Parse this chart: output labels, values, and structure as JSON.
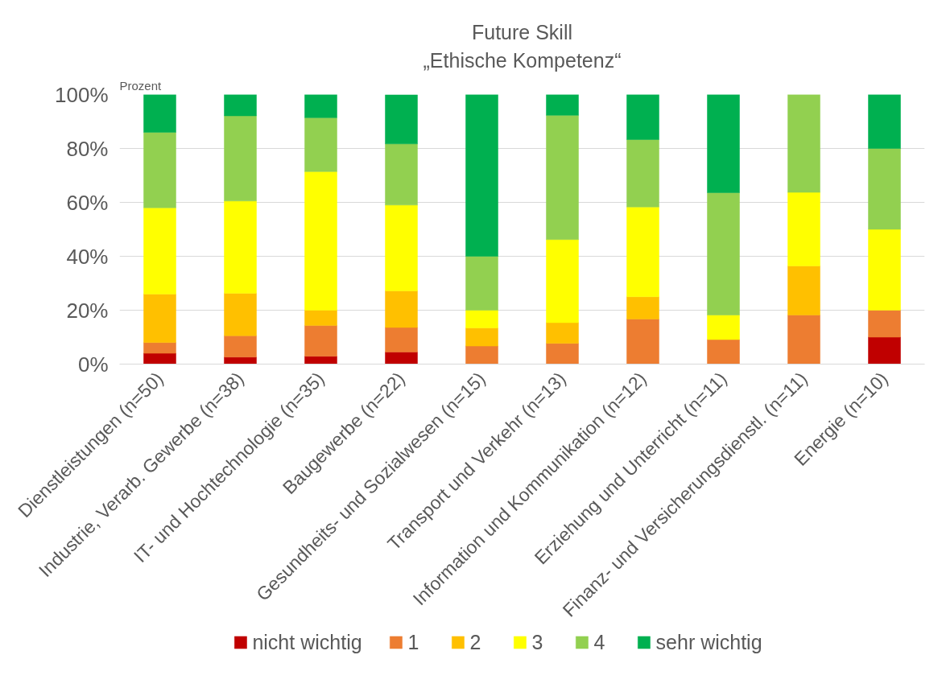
{
  "chart_data": {
    "type": "bar",
    "stacked": true,
    "title": "Future Skill",
    "subtitle": "„Ethische Kompetenz“",
    "ylabel": "Prozent",
    "categories": [
      "Dienstleistungen (n=50)",
      "Industrie, Verarb. Gewerbe (n=38)",
      "IT- und Hochtechnologie (n=35)",
      "Baugewerbe (n=22)",
      "Gesundheits- und Sozialwesen (n=15)",
      "Transport und Verkehr (n=13)",
      "Information und Kommunikation (n=12)",
      "Erziehung und Unterricht (n=11)",
      "Finanz- und Versicherungsdienstl. (n=11)",
      "Energie (n=10)"
    ],
    "series": [
      {
        "name": "nicht wichtig",
        "color": "#c00000",
        "values": [
          4,
          2.6,
          2.9,
          4.5,
          0,
          0,
          0,
          0,
          0,
          10
        ]
      },
      {
        "name": "1",
        "color": "#ed7d31",
        "values": [
          4,
          7.9,
          11.4,
          9.1,
          6.7,
          7.7,
          16.7,
          9.1,
          18.2,
          10
        ]
      },
      {
        "name": "2",
        "color": "#ffc000",
        "values": [
          18,
          15.8,
          5.7,
          13.6,
          6.7,
          7.7,
          8.3,
          0,
          18.2,
          0
        ]
      },
      {
        "name": "3",
        "color": "#ffff00",
        "values": [
          32,
          34.2,
          51.4,
          31.8,
          6.6,
          30.8,
          33.3,
          9.1,
          27.3,
          30
        ]
      },
      {
        "name": "4",
        "color": "#92d050",
        "values": [
          28,
          31.6,
          20,
          22.7,
          20,
          46.1,
          25,
          45.4,
          36.3,
          30
        ]
      },
      {
        "name": "sehr wichtig",
        "color": "#00b050",
        "values": [
          14,
          7.9,
          8.6,
          18.2,
          60,
          7.7,
          16.7,
          36.4,
          0,
          20
        ]
      }
    ],
    "ylim": [
      0,
      100
    ],
    "yticks": [
      {
        "value": 0,
        "label": "0%"
      },
      {
        "value": 20,
        "label": "20%"
      },
      {
        "value": 40,
        "label": "40%"
      },
      {
        "value": 60,
        "label": "60%"
      },
      {
        "value": 80,
        "label": "80%"
      },
      {
        "value": 100,
        "label": "100%"
      }
    ],
    "grid": "y",
    "legend": "bottom"
  }
}
